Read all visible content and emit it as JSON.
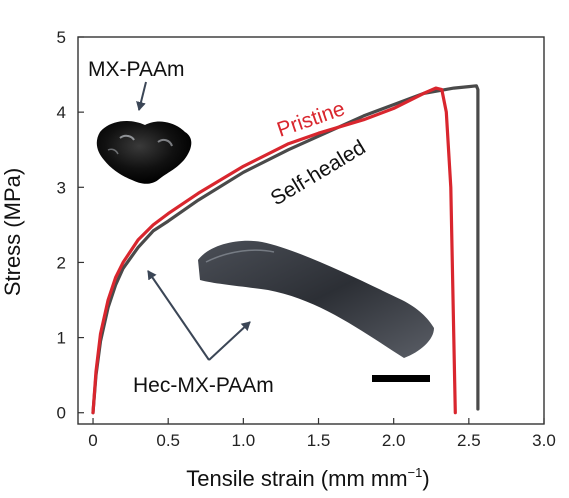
{
  "chart_data": {
    "type": "line",
    "xlabel": "Tensile strain (mm mm",
    "xlabel_sup": "−1",
    "xlabel_end": ")",
    "ylabel": "Stress (MPa)",
    "xlim": [
      -0.1,
      3.0
    ],
    "ylim": [
      -0.15,
      5.0
    ],
    "x_ticks": [
      "0",
      "0.5",
      "1.0",
      "1.5",
      "2.0",
      "2.5",
      "3.0"
    ],
    "x_tick_values": [
      0,
      0.5,
      1.0,
      1.5,
      2.0,
      2.5,
      3.0
    ],
    "y_ticks": [
      "0",
      "1",
      "2",
      "3",
      "4",
      "5"
    ],
    "y_tick_values": [
      0,
      1,
      2,
      3,
      4,
      5
    ],
    "series": [
      {
        "name": "Self-healed",
        "color": "#4a4a4a",
        "x": [
          0,
          0.02,
          0.05,
          0.1,
          0.15,
          0.2,
          0.3,
          0.4,
          0.5,
          0.7,
          1.0,
          1.3,
          1.5,
          1.8,
          2.0,
          2.2,
          2.4,
          2.5,
          2.55,
          2.56,
          2.56
        ],
        "y": [
          0,
          0.5,
          0.95,
          1.4,
          1.7,
          1.92,
          2.2,
          2.42,
          2.55,
          2.83,
          3.2,
          3.5,
          3.68,
          3.95,
          4.1,
          4.25,
          4.32,
          4.34,
          4.35,
          4.3,
          0.05
        ]
      },
      {
        "name": "Pristine",
        "color": "#d9262e",
        "x": [
          0,
          0.02,
          0.05,
          0.1,
          0.15,
          0.2,
          0.3,
          0.4,
          0.5,
          0.7,
          1.0,
          1.3,
          1.5,
          1.8,
          2.0,
          2.2,
          2.28,
          2.32,
          2.35,
          2.38,
          2.4,
          2.41
        ],
        "y": [
          0,
          0.55,
          1.05,
          1.5,
          1.8,
          2.0,
          2.3,
          2.5,
          2.65,
          2.92,
          3.28,
          3.58,
          3.72,
          3.9,
          4.05,
          4.25,
          4.32,
          4.3,
          4.0,
          3.0,
          1.0,
          0.0
        ]
      }
    ]
  },
  "annotations": {
    "pristine": "Pristine",
    "self_healed": "Self-healed",
    "mx_paam": "MX-PAAm",
    "hec_mx_paam": "Hec-MX-PAAm"
  }
}
